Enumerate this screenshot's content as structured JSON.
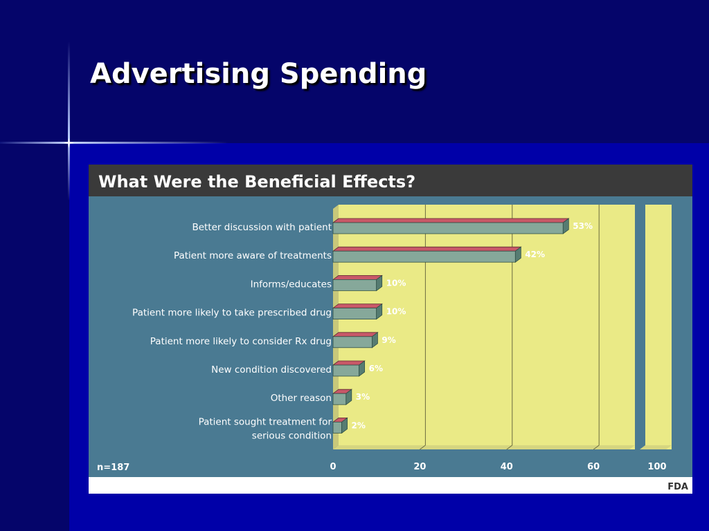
{
  "slide": {
    "title": "Advertising Spending"
  },
  "chart_data": {
    "type": "bar",
    "orientation": "horizontal",
    "title": "What Were the Beneficial Effects?",
    "categories": [
      [
        "Better discussion with patient"
      ],
      [
        "Patient more aware of treatments"
      ],
      [
        "Informs/educates"
      ],
      [
        "Patient more likely to take prescribed drug"
      ],
      [
        "Patient more likely to consider Rx drug"
      ],
      [
        "New condition discovered"
      ],
      [
        "Other reason"
      ],
      [
        "Patient sought treatment for",
        "serious condition"
      ]
    ],
    "values": [
      53,
      42,
      10,
      10,
      9,
      6,
      3,
      2
    ],
    "value_labels": [
      "53%",
      "42%",
      "10%",
      "10%",
      "9%",
      "6%",
      "3%",
      "2%"
    ],
    "x_ticks": [
      0,
      20,
      40,
      60,
      100
    ],
    "x_tick_labels": [
      "0",
      "20",
      "40",
      "60",
      "100"
    ],
    "axis_break": true,
    "xlim": [
      0,
      100
    ],
    "grid": true,
    "note": "n=187",
    "source": "FDA",
    "colors": {
      "panel": "#4a7a92",
      "header": "#3a3a3a",
      "plot_area": "#eaea86",
      "bar_front": "#86a89a",
      "bar_top": "#c85868",
      "bar_side": "#567c72",
      "label_text": "#ffffff",
      "value_text": "#ffffff"
    }
  }
}
